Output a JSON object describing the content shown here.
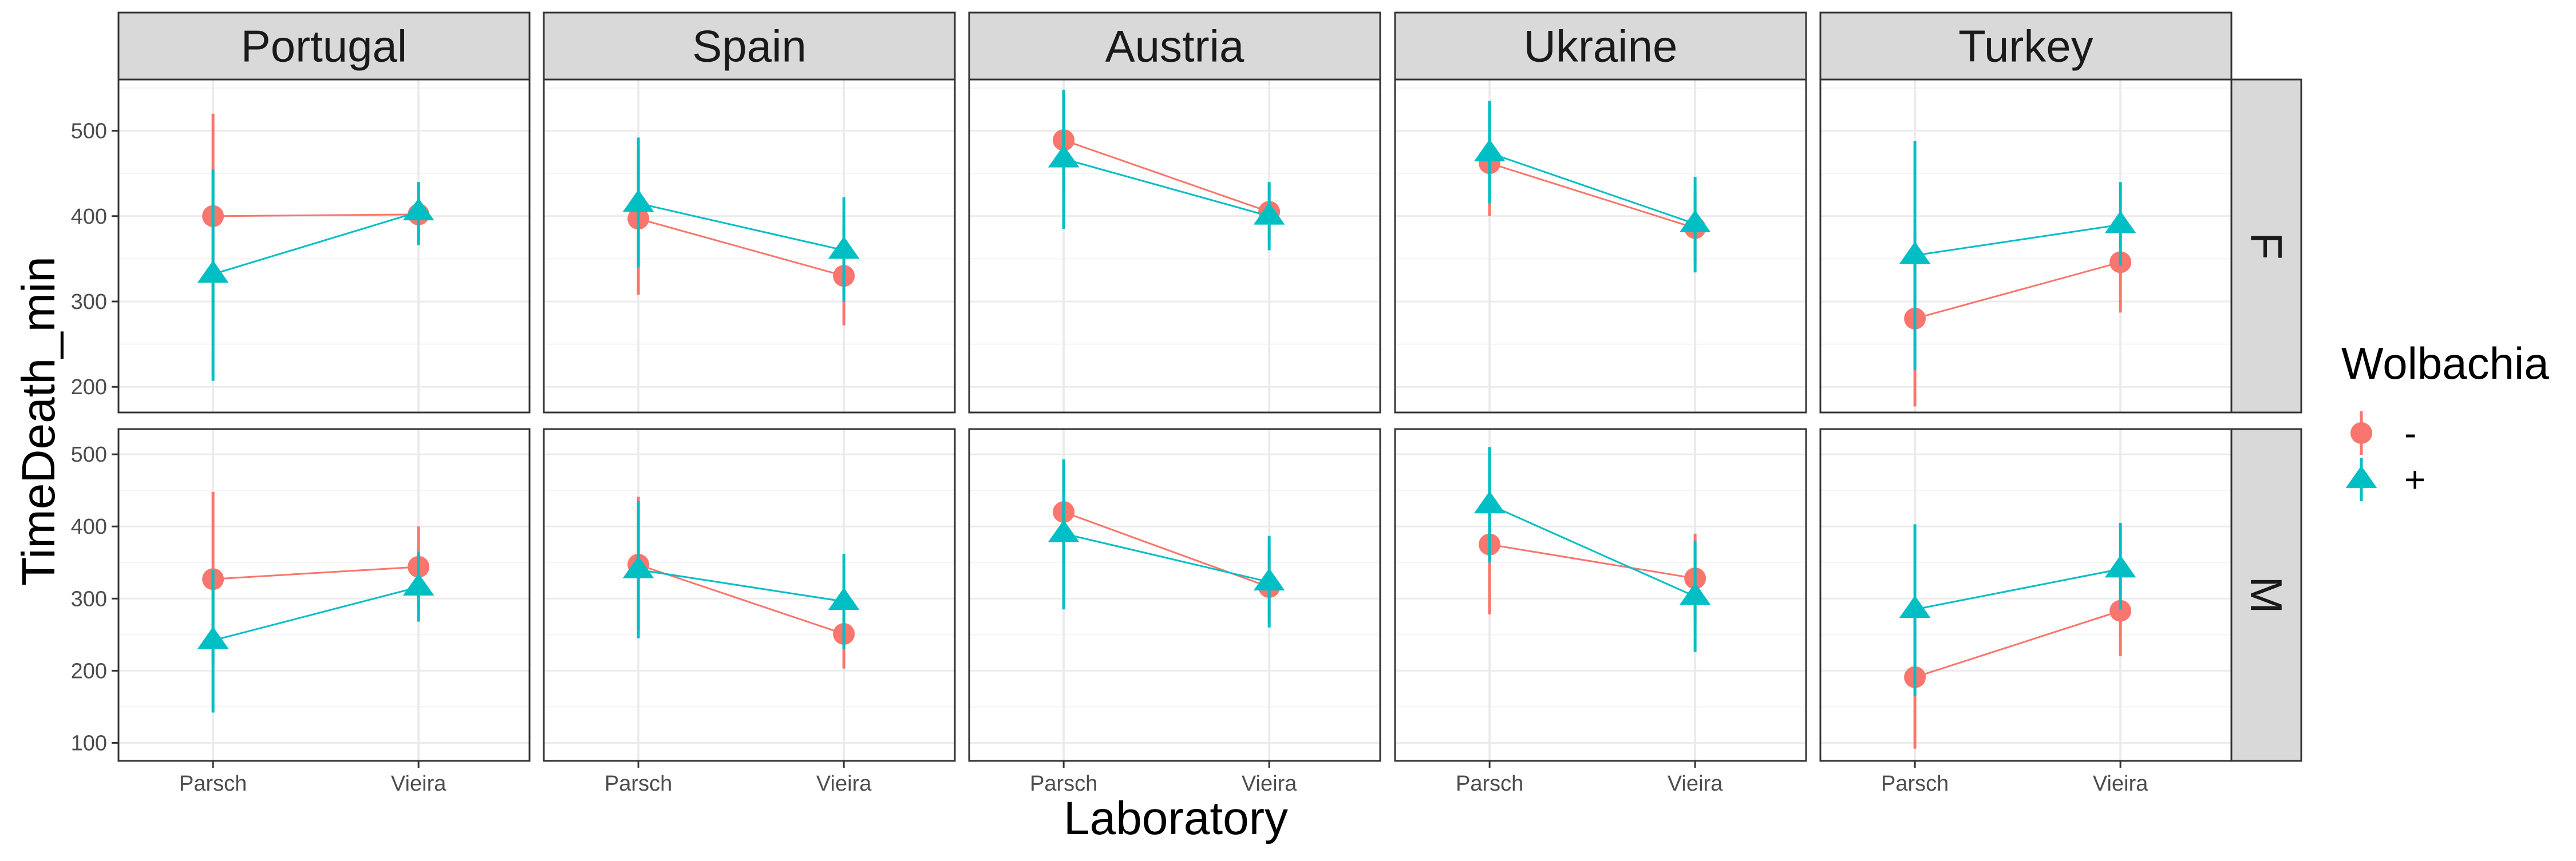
{
  "chart_data": {
    "type": "scatter",
    "facet_columns": [
      "Portugal",
      "Spain",
      "Austria",
      "Ukraine",
      "Turkey"
    ],
    "facet_rows": [
      "F",
      "M"
    ],
    "categories": [
      "Parsch",
      "Vieira"
    ],
    "xlabel": "Laboratory",
    "ylabel": "TimeDeath_min",
    "legend": {
      "title": "Wolbachia",
      "position": "right",
      "entries": [
        {
          "label": "-",
          "color": "#F8766D",
          "shape": "circle"
        },
        {
          "label": "+",
          "color": "#00BFC4",
          "shape": "triangle"
        }
      ]
    },
    "grid": true,
    "rows": [
      {
        "label": "F",
        "ylim": [
          170,
          560
        ],
        "yticks": [
          200,
          300,
          400,
          500
        ],
        "panels": [
          {
            "facet": "Portugal",
            "series": [
              {
                "name": "-",
                "values": [
                  400,
                  402
                ],
                "lower": [
                  280,
                  370
                ],
                "upper": [
                  520,
                  435
                ]
              },
              {
                "name": "+",
                "values": [
                  332,
                  405
                ],
                "lower": [
                  207,
                  366
                ],
                "upper": [
                  455,
                  440
                ]
              }
            ]
          },
          {
            "facet": "Spain",
            "series": [
              {
                "name": "-",
                "values": [
                  397,
                  330
                ],
                "lower": [
                  308,
                  272
                ],
                "upper": [
                  480,
                  388
                ]
              },
              {
                "name": "+",
                "values": [
                  415,
                  360
                ],
                "lower": [
                  340,
                  300
                ],
                "upper": [
                  492,
                  422
                ]
              }
            ]
          },
          {
            "facet": "Austria",
            "series": [
              {
                "name": "-",
                "values": [
                  489,
                  405
                ],
                "lower": [
                  430,
                  372
                ],
                "upper": [
                  548,
                  438
                ]
              },
              {
                "name": "+",
                "values": [
                  467,
                  400
                ],
                "lower": [
                  385,
                  360
                ],
                "upper": [
                  548,
                  440
                ]
              }
            ]
          },
          {
            "facet": "Ukraine",
            "series": [
              {
                "name": "-",
                "values": [
                  462,
                  386
                ],
                "lower": [
                  400,
                  345
                ],
                "upper": [
                  525,
                  428
                ]
              },
              {
                "name": "+",
                "values": [
                  474,
                  391
                ],
                "lower": [
                  415,
                  334
                ],
                "upper": [
                  535,
                  446
                ]
              }
            ]
          },
          {
            "facet": "Turkey",
            "series": [
              {
                "name": "-",
                "values": [
                  280,
                  346
                ],
                "lower": [
                  177,
                  287
                ],
                "upper": [
                  382,
                  405
                ]
              },
              {
                "name": "+",
                "values": [
                  354,
                  390
                ],
                "lower": [
                  220,
                  342
                ],
                "upper": [
                  488,
                  440
                ]
              }
            ]
          }
        ]
      },
      {
        "label": "M",
        "ylim": [
          75,
          535
        ],
        "yticks": [
          100,
          200,
          300,
          400,
          500
        ],
        "panels": [
          {
            "facet": "Portugal",
            "series": [
              {
                "name": "-",
                "values": [
                  327,
                  344
                ],
                "lower": [
                  208,
                  290
                ],
                "upper": [
                  448,
                  400
                ]
              },
              {
                "name": "+",
                "values": [
                  242,
                  316
                ],
                "lower": [
                  142,
                  268
                ],
                "upper": [
                  340,
                  365
                ]
              }
            ]
          },
          {
            "facet": "Spain",
            "series": [
              {
                "name": "-",
                "values": [
                  347,
                  251
                ],
                "lower": [
                  255,
                  203
                ],
                "upper": [
                  441,
                  300
                ]
              },
              {
                "name": "+",
                "values": [
                  340,
                  296
                ],
                "lower": [
                  245,
                  230
                ],
                "upper": [
                  435,
                  362
                ]
              }
            ]
          },
          {
            "facet": "Austria",
            "series": [
              {
                "name": "-",
                "values": [
                  420,
                  316
                ],
                "lower": [
                  350,
                  265
                ],
                "upper": [
                  490,
                  370
                ]
              },
              {
                "name": "+",
                "values": [
                  390,
                  323
                ],
                "lower": [
                  285,
                  260
                ],
                "upper": [
                  493,
                  387
                ]
              }
            ]
          },
          {
            "facet": "Ukraine",
            "series": [
              {
                "name": "-",
                "values": [
                  375,
                  328
                ],
                "lower": [
                  278,
                  268
                ],
                "upper": [
                  472,
                  390
                ]
              },
              {
                "name": "+",
                "values": [
                  430,
                  303
                ],
                "lower": [
                  350,
                  226
                ],
                "upper": [
                  510,
                  380
                ]
              }
            ]
          },
          {
            "facet": "Turkey",
            "series": [
              {
                "name": "-",
                "values": [
                  191,
                  283
                ],
                "lower": [
                  92,
                  220
                ],
                "upper": [
                  290,
                  345
                ]
              },
              {
                "name": "+",
                "values": [
                  285,
                  341
                ],
                "lower": [
                  165,
                  285
                ],
                "upper": [
                  403,
                  405
                ]
              }
            ]
          }
        ]
      }
    ]
  }
}
